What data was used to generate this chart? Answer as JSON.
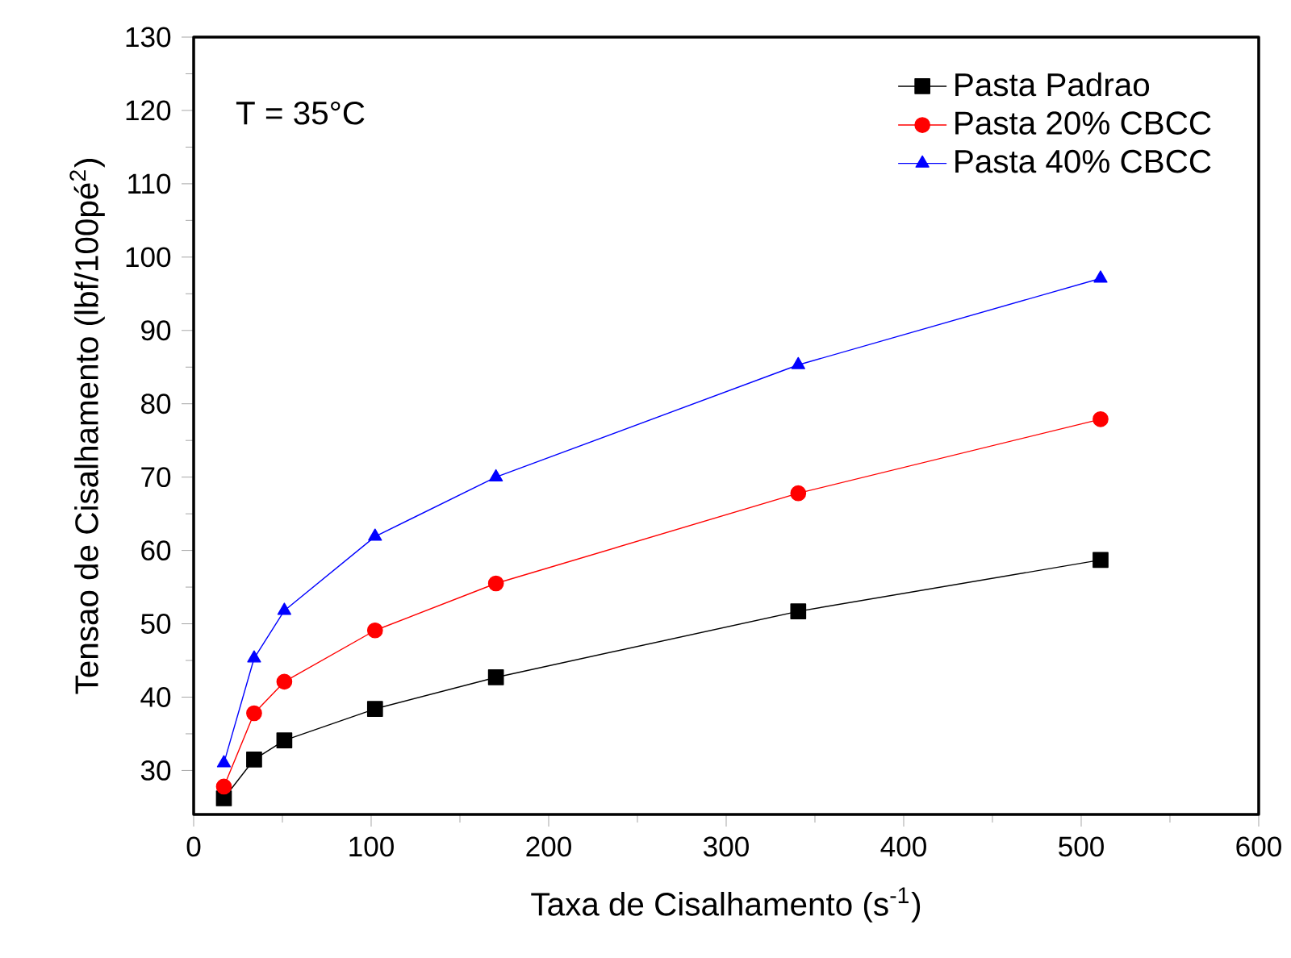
{
  "chart_data": {
    "type": "line",
    "xlabel": "Taxa de Cisalhamento (s$^{-1}$)",
    "ylabel": "Tensao de Cisalhamento (lbf/100pé$^{2}$)",
    "annotations": [
      "T = 35°C"
    ],
    "x": [
      17.03,
      34.06,
      51.09,
      102.18,
      170.3,
      340.6,
      510.9
    ],
    "series": [
      {
        "name": "Pasta Padrao",
        "color": "#000000",
        "marker": "square",
        "values": [
          26.2,
          31.5,
          34.1,
          38.4,
          42.7,
          51.7,
          58.7
        ]
      },
      {
        "name": "Pasta 20% CBCC",
        "color": "#ff0000",
        "marker": "circle",
        "values": [
          27.8,
          37.8,
          42.1,
          49.1,
          55.5,
          67.8,
          77.9
        ]
      },
      {
        "name": "Pasta 40% CBCC",
        "color": "#0000ff",
        "marker": "triangle",
        "values": [
          31,
          45.3,
          51.8,
          61.9,
          70,
          85.3,
          97.1
        ]
      }
    ],
    "xlim": [
      0,
      600
    ],
    "xticks": [
      0,
      100,
      200,
      300,
      400,
      500,
      600
    ],
    "ylim": [
      24,
      130
    ],
    "yticks": [
      30,
      40,
      50,
      60,
      70,
      80,
      90,
      100,
      110,
      120,
      130
    ],
    "grid": false,
    "legend": "top right",
    "line_style": "solid"
  }
}
